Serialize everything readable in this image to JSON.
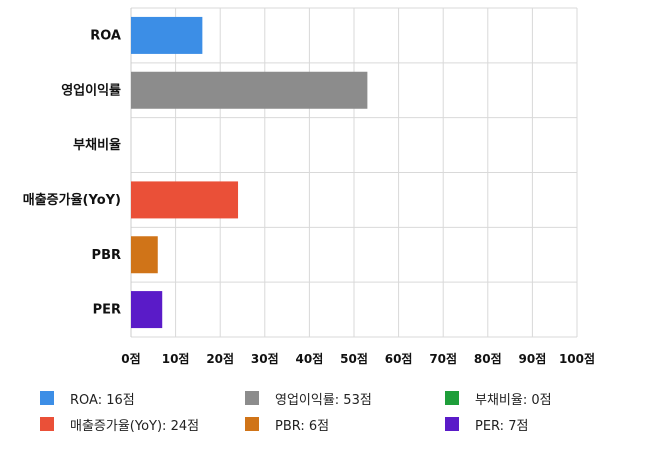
{
  "chart_data": {
    "type": "bar",
    "orientation": "horizontal",
    "categories": [
      "ROA",
      "영업이익률",
      "부채비율",
      "매출증가율(YoY)",
      "PBR",
      "PER"
    ],
    "values": [
      16,
      53,
      0,
      24,
      6,
      7
    ],
    "colors": [
      "#3c8ee6",
      "#8c8c8c",
      "#1e9e3a",
      "#ea5038",
      "#d07418",
      "#5a1bc8"
    ],
    "xlim": [
      0,
      100
    ],
    "x_ticks": [
      "0점",
      "10점",
      "20점",
      "30점",
      "40점",
      "50점",
      "60점",
      "70점",
      "80점",
      "90점",
      "100점"
    ],
    "grid": true,
    "legend_position": "bottom",
    "legend": [
      {
        "label": "ROA: 16점",
        "color": "#3c8ee6"
      },
      {
        "label": "영업이익률: 53점",
        "color": "#8c8c8c"
      },
      {
        "label": "부채비율: 0점",
        "color": "#1e9e3a"
      },
      {
        "label": "매출증가율(YoY): 24점",
        "color": "#ea5038"
      },
      {
        "label": "PBR: 6점",
        "color": "#d07418"
      },
      {
        "label": "PER: 7점",
        "color": "#5a1bc8"
      }
    ]
  }
}
